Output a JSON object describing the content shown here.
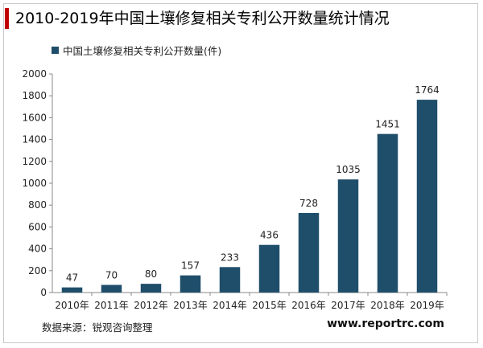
{
  "header": {
    "title": "2010-2019年中国土壤修复相关专利公开数量统计情况"
  },
  "footer": {
    "source": "数据来源：锐观咨询整理",
    "website": "www.reportrc.com"
  },
  "colors": {
    "bar": "#1f4e6a",
    "title_accent": "#c00000",
    "axis": "#888888"
  },
  "chart_data": {
    "type": "bar",
    "categories": [
      "2010年",
      "2011年",
      "2012年",
      "2013年",
      "2014年",
      "2015年",
      "2016年",
      "2017年",
      "2018年",
      "2019年"
    ],
    "series": [
      {
        "name": "中国土壤修复相关专利公开数量(件)",
        "values": [
          47,
          70,
          80,
          157,
          233,
          436,
          728,
          1035,
          1451,
          1764
        ]
      }
    ],
    "title": "",
    "xlabel": "",
    "ylabel": "",
    "ylim": [
      0,
      2000
    ],
    "yticks": [
      "0",
      "200",
      "400",
      "600",
      "800",
      "1000",
      "1200",
      "1400",
      "1600",
      "1800",
      "2000"
    ],
    "grid": false,
    "legend": "top-left",
    "data_labels": true
  }
}
